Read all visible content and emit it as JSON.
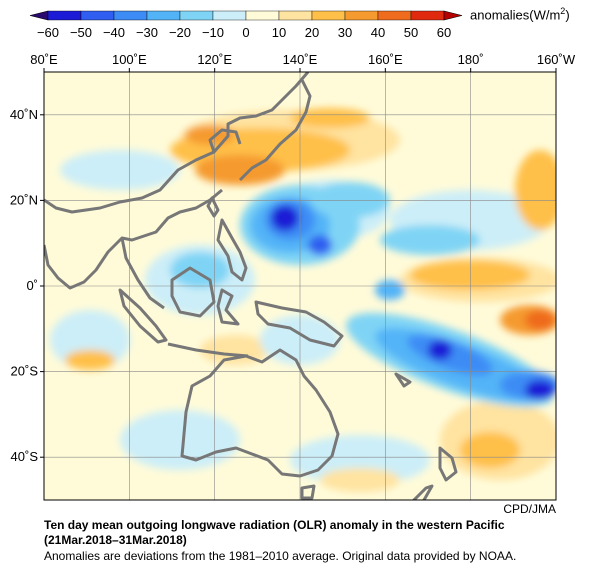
{
  "legend": {
    "unit_label": "anomalies(W/m",
    "unit_exponent": "2",
    "unit_close": ")",
    "ticks": [
      "−60",
      "−50",
      "−40",
      "−30",
      "−20",
      "−10",
      "0",
      "10",
      "20",
      "30",
      "40",
      "50",
      "60"
    ],
    "colors": [
      "#1c1cd6",
      "#2f5ef0",
      "#3d8cf5",
      "#52b4f7",
      "#7fd4f5",
      "#cceef8",
      "#fffbd9",
      "#ffe3a0",
      "#ffc04a",
      "#f59a2e",
      "#ef6b1e",
      "#e02a10"
    ],
    "under_color": "#2a0a6e",
    "over_color": "#b40000"
  },
  "map": {
    "lon_labels": [
      "80˚E",
      "100˚E",
      "120˚E",
      "140˚E",
      "160˚E",
      "180˚",
      "160˚W"
    ],
    "lat_labels": [
      "40˚N",
      "20˚N",
      "0˚",
      "20˚S",
      "40˚S"
    ],
    "lon_range": [
      80,
      200
    ],
    "lat_range": [
      -50,
      50
    ],
    "grid": true,
    "coastline_color": "#777777"
  },
  "credit": "CPD/JMA",
  "title_line1": "Ten day mean outgoing longwave radiation (OLR) anomaly in the western Pacific",
  "title_line2": "(21Mar.2018–31Mar.2018)",
  "note": "Anomalies are deviations from the 1981–2010 average. Original data provided by NOAA."
}
